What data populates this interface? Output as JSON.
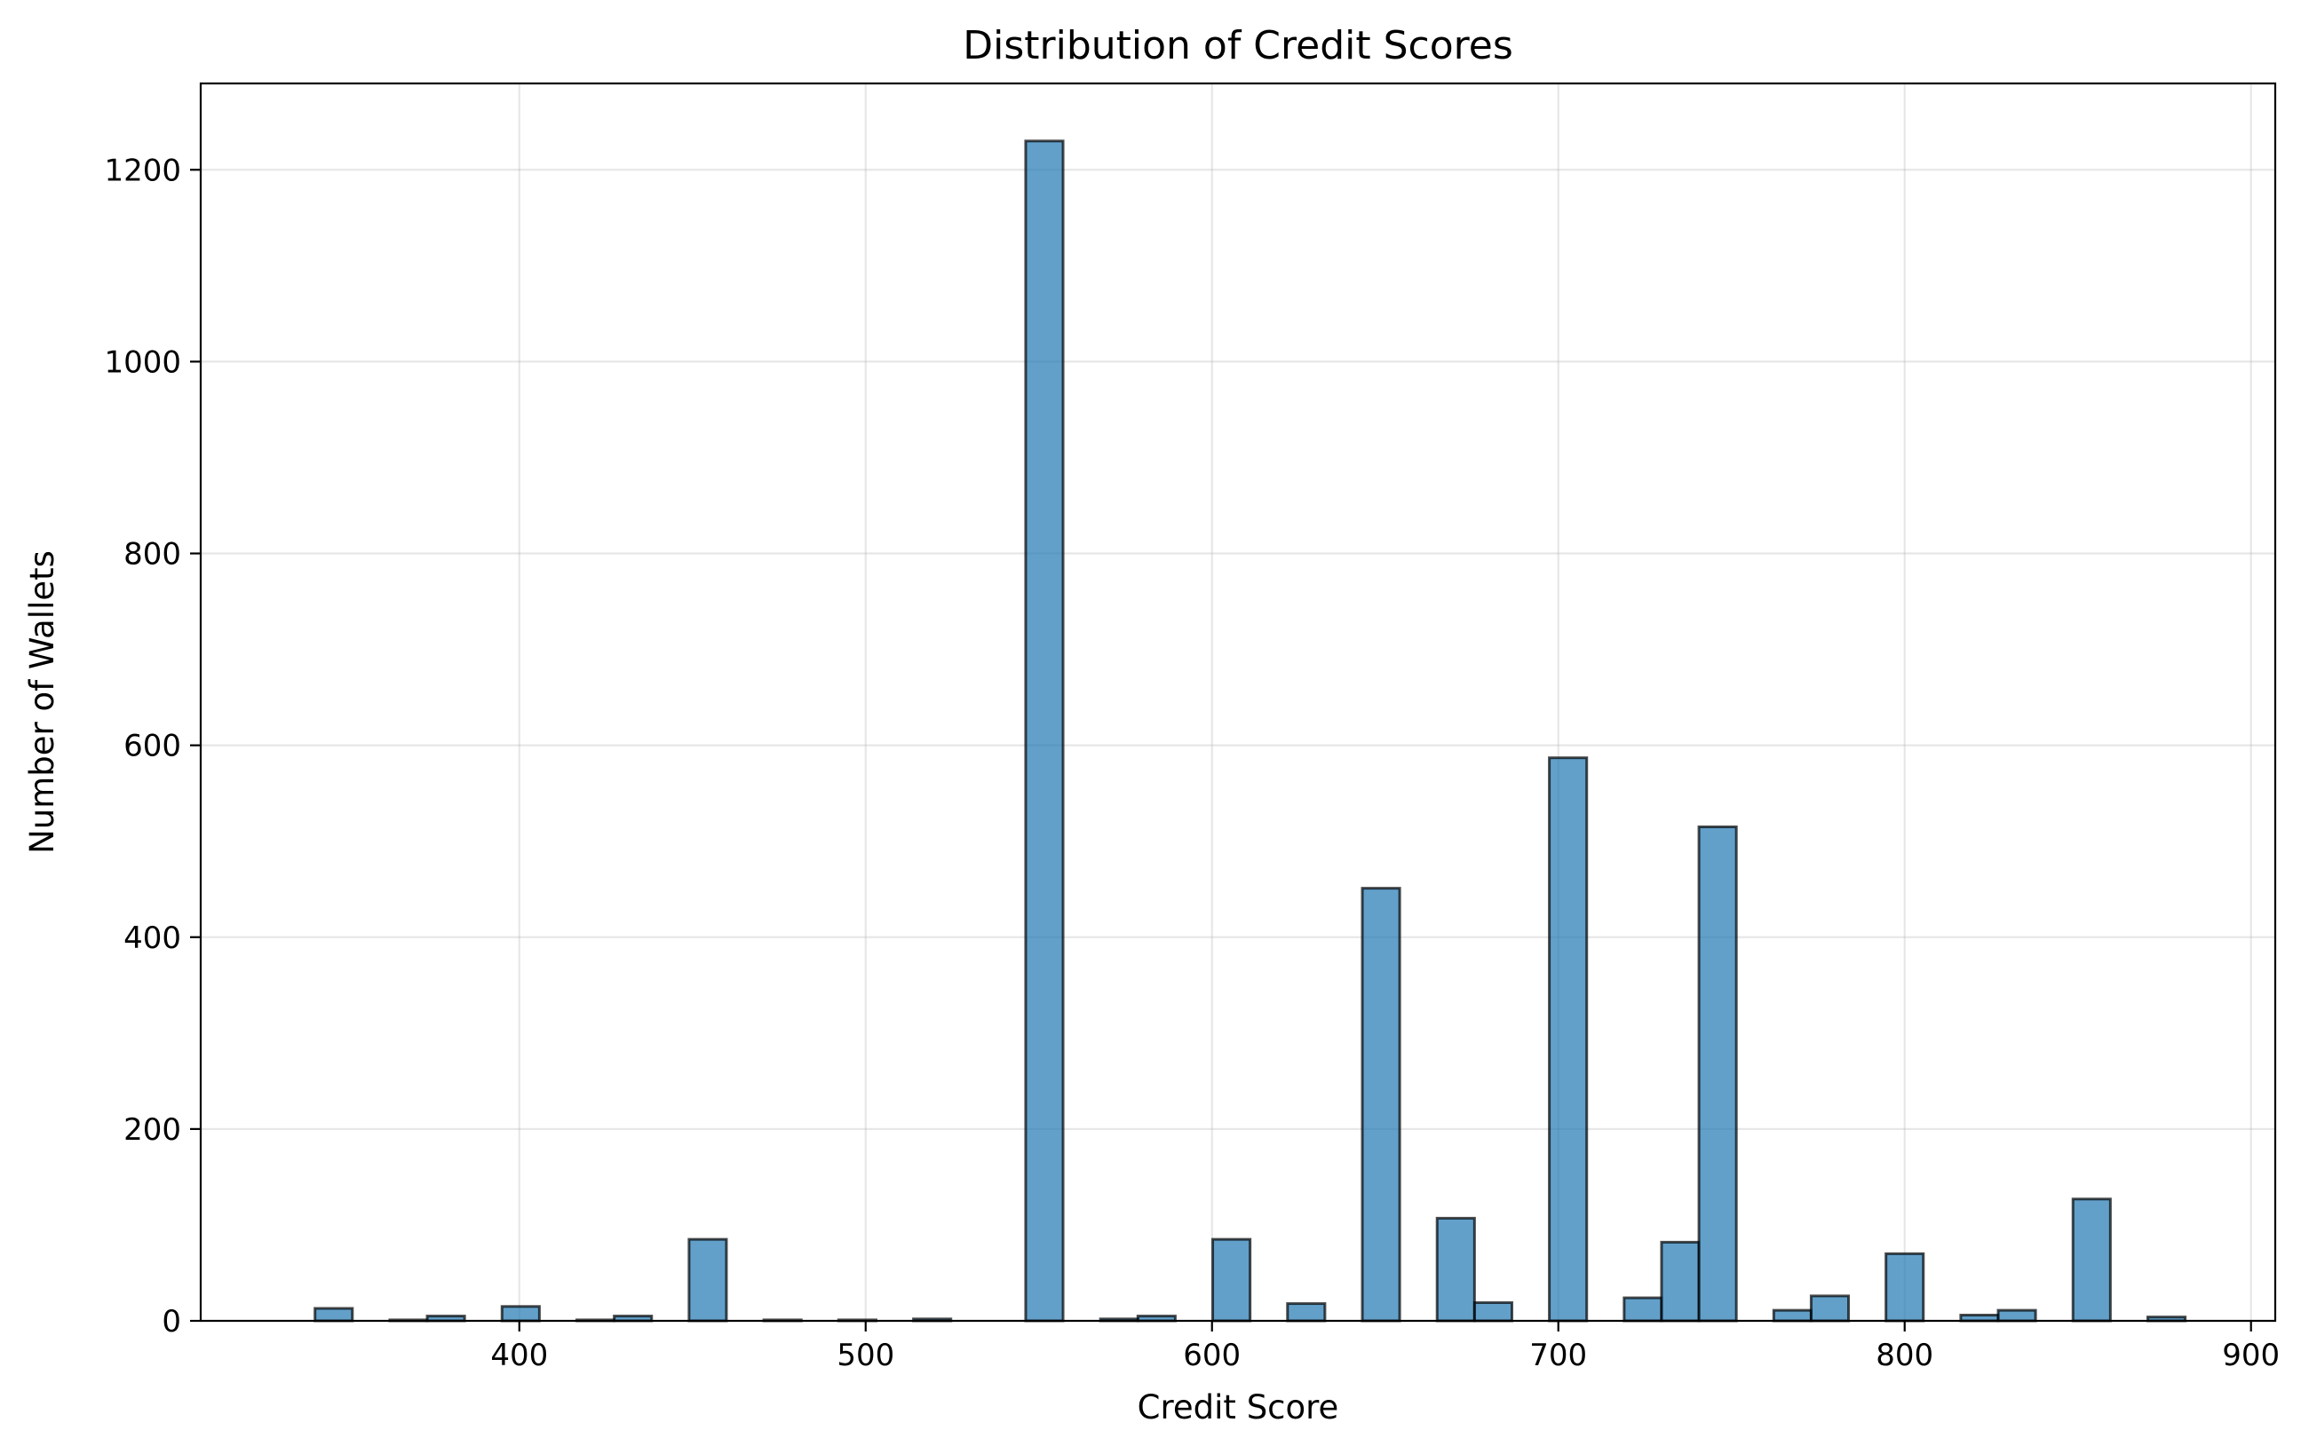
{
  "chart_data": {
    "type": "bar",
    "title": "Distribution of Credit Scores",
    "xlabel": "Credit Score",
    "ylabel": "Number of Wallets",
    "xlim": [
      308,
      907
    ],
    "ylim": [
      0,
      1290
    ],
    "xticks": [
      400,
      500,
      600,
      700,
      800,
      900
    ],
    "yticks": [
      0,
      200,
      400,
      600,
      800,
      1000,
      1200
    ],
    "grid": true,
    "bar_color": "#1f77b4",
    "bar_edge_color": "#000000",
    "bin_width": 10.8,
    "bins": [
      {
        "x0": 341.0,
        "count": 13
      },
      {
        "x0": 362.6,
        "count": 1
      },
      {
        "x0": 373.4,
        "count": 5
      },
      {
        "x0": 395.0,
        "count": 15
      },
      {
        "x0": 416.6,
        "count": 1
      },
      {
        "x0": 427.4,
        "count": 5
      },
      {
        "x0": 449.0,
        "count": 85
      },
      {
        "x0": 470.6,
        "count": 1
      },
      {
        "x0": 492.2,
        "count": 1
      },
      {
        "x0": 513.8,
        "count": 2
      },
      {
        "x0": 546.2,
        "count": 1230
      },
      {
        "x0": 567.8,
        "count": 2
      },
      {
        "x0": 578.6,
        "count": 5
      },
      {
        "x0": 600.2,
        "count": 85
      },
      {
        "x0": 621.8,
        "count": 18
      },
      {
        "x0": 643.4,
        "count": 451
      },
      {
        "x0": 665.0,
        "count": 107
      },
      {
        "x0": 675.8,
        "count": 19
      },
      {
        "x0": 697.4,
        "count": 587
      },
      {
        "x0": 719.0,
        "count": 24
      },
      {
        "x0": 729.8,
        "count": 82
      },
      {
        "x0": 740.6,
        "count": 515
      },
      {
        "x0": 762.2,
        "count": 11
      },
      {
        "x0": 773.0,
        "count": 26
      },
      {
        "x0": 794.6,
        "count": 70
      },
      {
        "x0": 816.2,
        "count": 6
      },
      {
        "x0": 827.0,
        "count": 11
      },
      {
        "x0": 848.6,
        "count": 127
      },
      {
        "x0": 870.2,
        "count": 4
      }
    ]
  }
}
